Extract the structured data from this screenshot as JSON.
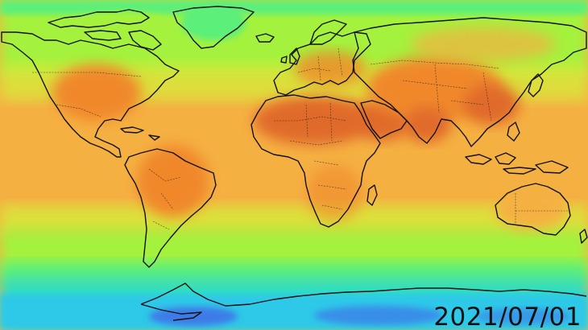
{
  "map": {
    "date": "2021/07/01",
    "projection": "equirectangular",
    "colormap": {
      "cold_deep": "#3d7be8",
      "cold": "#2dc8e8",
      "cool": "#2fe0c0",
      "mild": "#5cef7a",
      "temperate": "#a4f23e",
      "warm": "#d8e83a",
      "hot_light": "#f5b042",
      "hot": "#f0882c",
      "hottest": "#e06a2a"
    }
  }
}
